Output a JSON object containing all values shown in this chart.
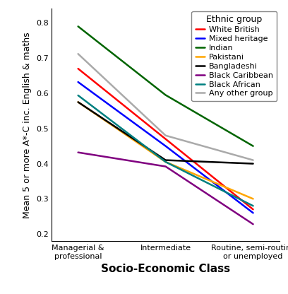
{
  "x_labels": [
    "Managerial &\nprofessional",
    "Intermediate",
    "Routine, semi-routine\nor unemployed"
  ],
  "x_positions": [
    0,
    1,
    2
  ],
  "xlabel": "Socio-Economic Class",
  "ylabel": "Mean 5 or more A*-C inc. English & maths",
  "ylim": [
    0.18,
    0.84
  ],
  "yticks": [
    0.2,
    0.3,
    0.4,
    0.5,
    0.6,
    0.7,
    0.8
  ],
  "legend_title": "Ethnic group",
  "series": [
    {
      "label": "White British",
      "color": "#FF0000",
      "values": [
        0.67,
        0.47,
        0.27
      ]
    },
    {
      "label": "Mixed heritage",
      "color": "#0000FF",
      "values": [
        0.632,
        0.45,
        0.26
      ]
    },
    {
      "label": "Indian",
      "color": "#006400",
      "values": [
        0.79,
        0.595,
        0.45
      ]
    },
    {
      "label": "Pakistani",
      "color": "#FFA500",
      "values": [
        0.575,
        0.405,
        0.3
      ]
    },
    {
      "label": "Bangladeshi",
      "color": "#000000",
      "values": [
        0.575,
        0.41,
        0.4
      ]
    },
    {
      "label": "Black Caribbean",
      "color": "#800080",
      "values": [
        0.432,
        0.392,
        0.228
      ]
    },
    {
      "label": "Black African",
      "color": "#008080",
      "values": [
        0.594,
        0.405,
        0.28
      ]
    },
    {
      "label": "Any other group",
      "color": "#AAAAAA",
      "values": [
        0.712,
        0.48,
        0.41
      ]
    }
  ],
  "linewidth": 1.8,
  "axis_label_fontsize": 9,
  "xlabel_fontsize": 11,
  "tick_fontsize": 8,
  "legend_fontsize": 8,
  "legend_title_fontsize": 9,
  "background_color": "#FFFFFF"
}
